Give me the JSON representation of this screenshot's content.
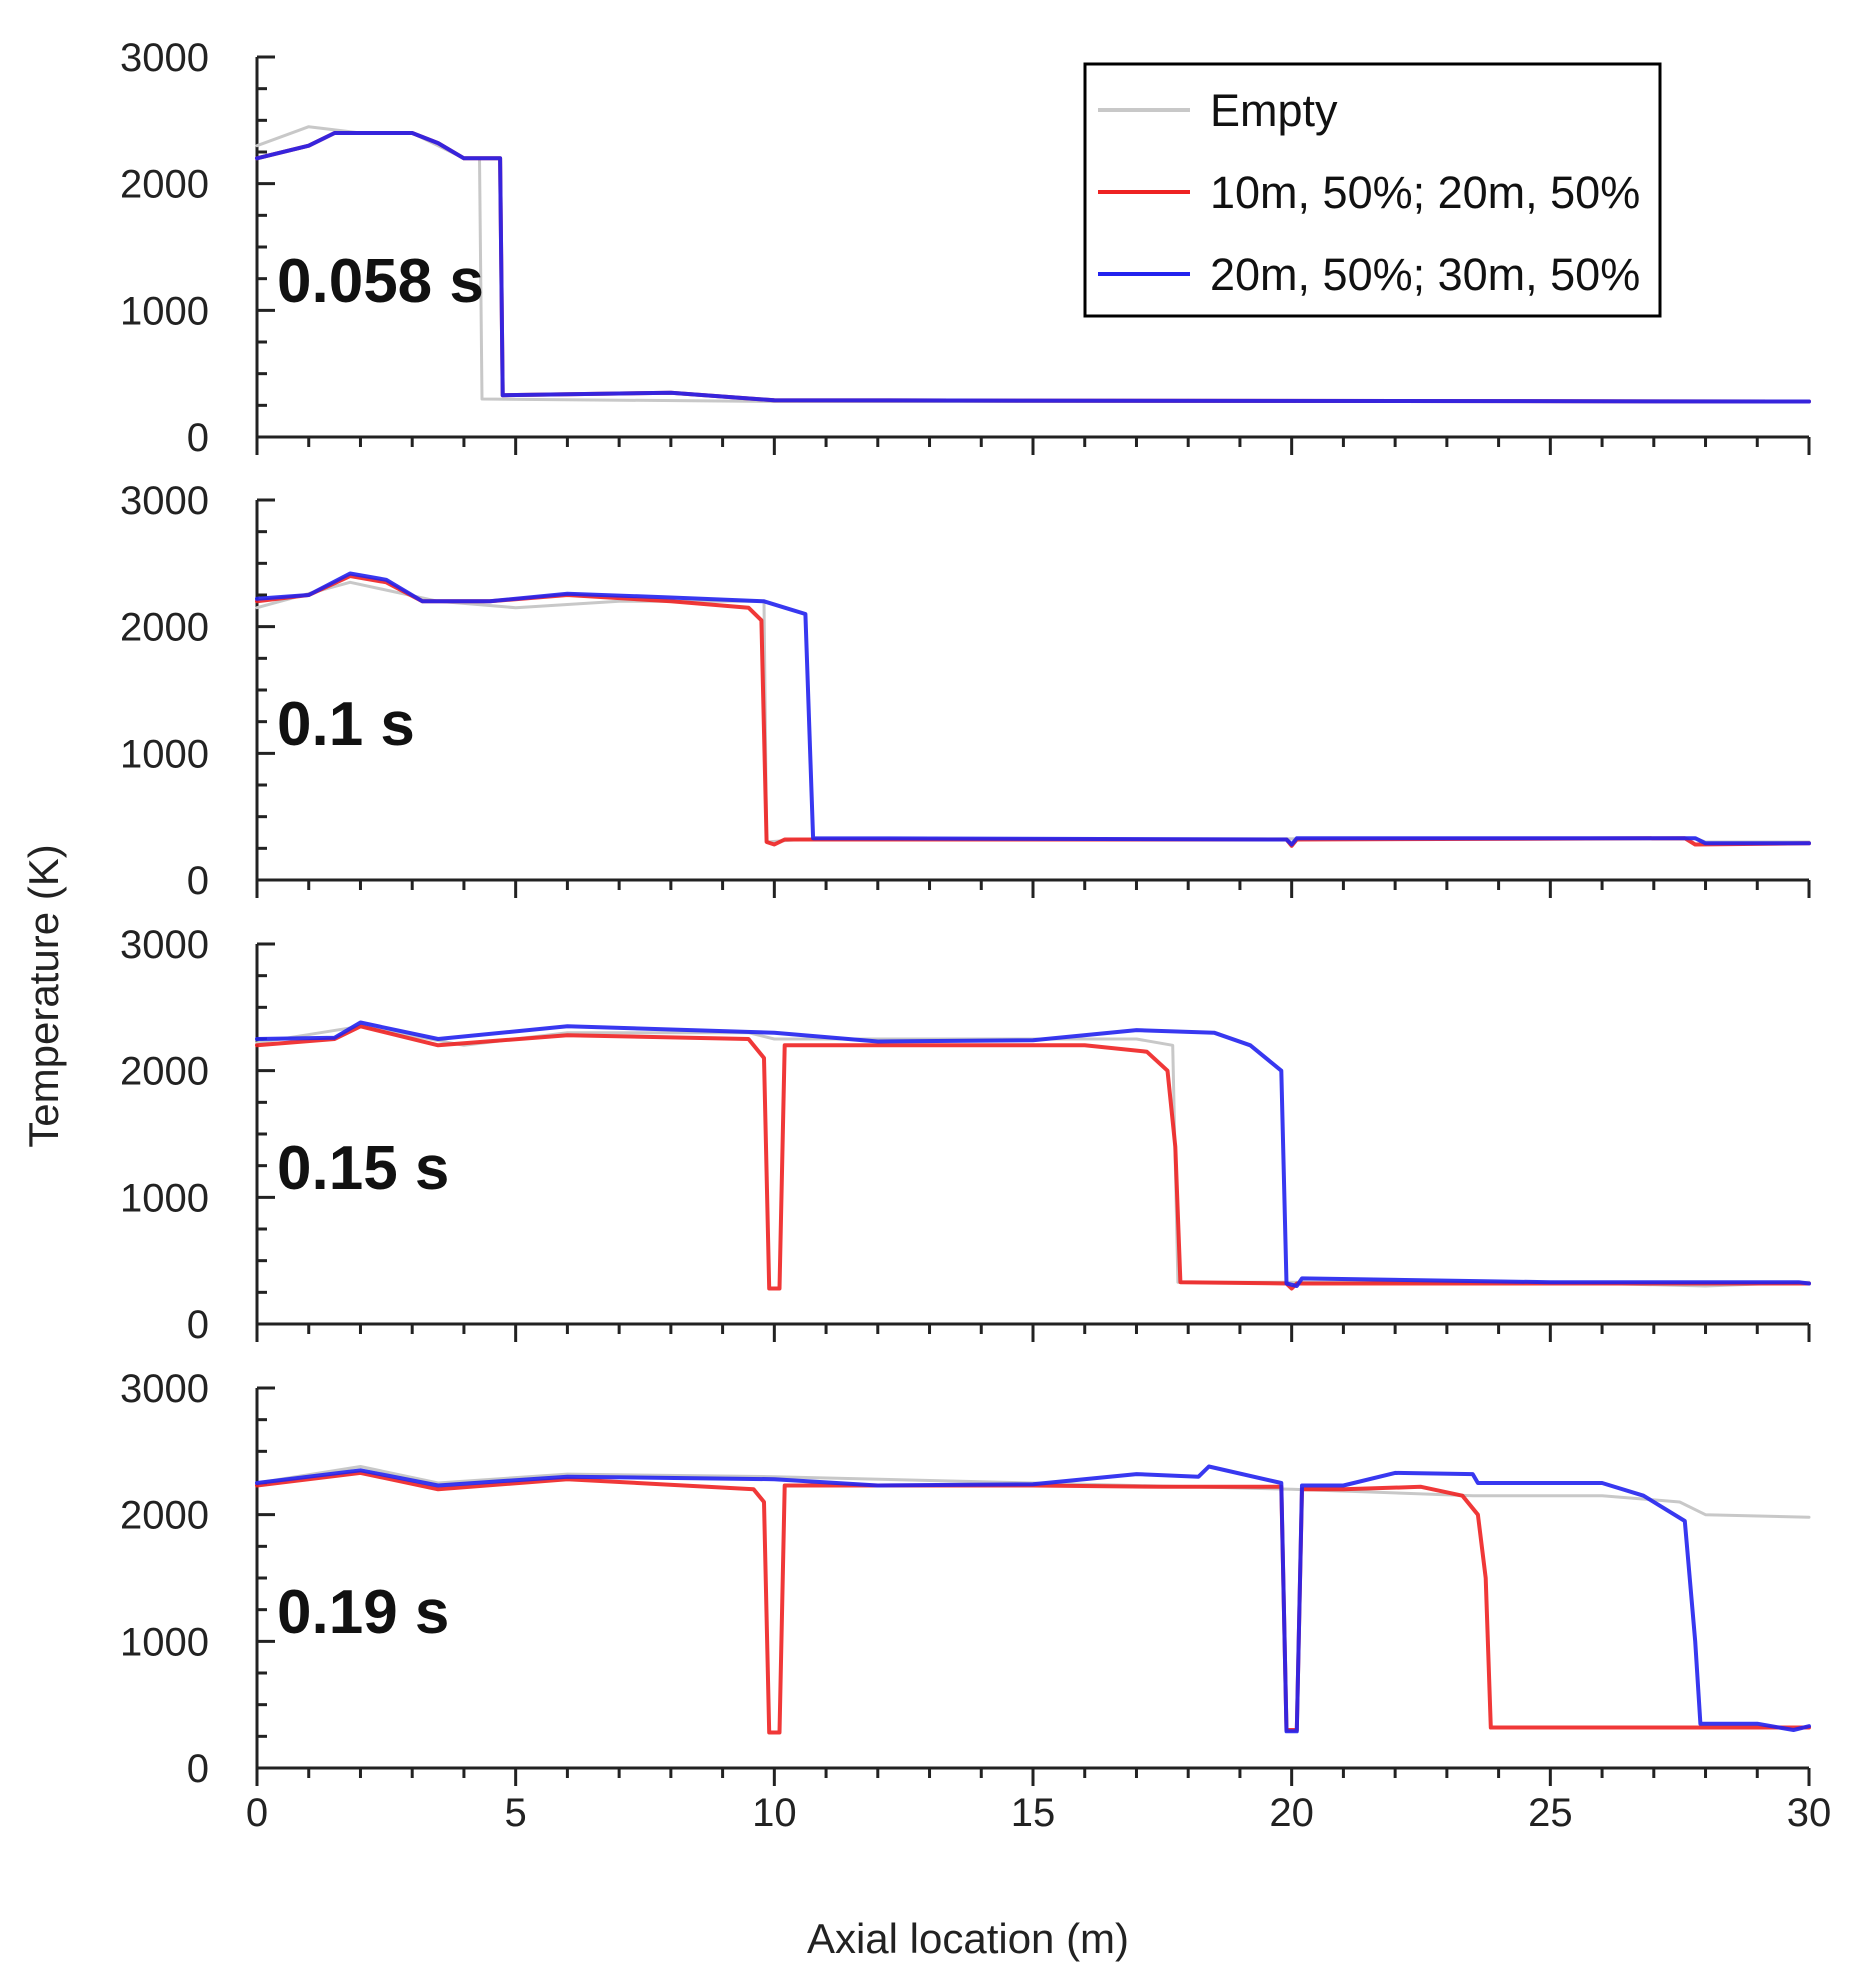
{
  "chart_data": {
    "type": "line",
    "xlabel": "Axial location (m)",
    "ylabel": "Temperature (K)",
    "xlim": [
      0,
      30
    ],
    "ylim": [
      0,
      3000
    ],
    "x_ticks": [
      0,
      5,
      10,
      15,
      20,
      25,
      30
    ],
    "y_ticks": [
      0,
      1000,
      2000,
      3000
    ],
    "grid": false,
    "legend_position": "top-right",
    "legend": [
      {
        "name": "Empty",
        "color": "#c8c8c8"
      },
      {
        "name": "10m, 50%; 20m, 50%",
        "color": "#ee2222"
      },
      {
        "name": "20m, 50%; 30m, 50%",
        "color": "#2222ee"
      }
    ],
    "panels": [
      {
        "label": "0.058 s",
        "series": [
          {
            "name": "Empty",
            "points": [
              [
                0,
                2300
              ],
              [
                1,
                2450
              ],
              [
                2,
                2400
              ],
              [
                3,
                2400
              ],
              [
                4,
                2200
              ],
              [
                4.3,
                2200
              ],
              [
                4.35,
                300
              ],
              [
                10,
                280
              ],
              [
                30,
                280
              ]
            ]
          },
          {
            "name": "10m, 50%; 20m, 50%",
            "points": [
              [
                0,
                2200
              ],
              [
                1,
                2300
              ],
              [
                1.5,
                2400
              ],
              [
                3,
                2400
              ],
              [
                3.5,
                2320
              ],
              [
                4,
                2200
              ],
              [
                4.7,
                2200
              ],
              [
                4.75,
                330
              ],
              [
                8,
                350
              ],
              [
                10,
                290
              ],
              [
                30,
                280
              ]
            ]
          },
          {
            "name": "20m, 50%; 30m, 50%",
            "points": [
              [
                0,
                2200
              ],
              [
                1,
                2300
              ],
              [
                1.5,
                2400
              ],
              [
                3,
                2400
              ],
              [
                3.5,
                2320
              ],
              [
                4,
                2200
              ],
              [
                4.7,
                2200
              ],
              [
                4.75,
                330
              ],
              [
                8,
                350
              ],
              [
                10,
                290
              ],
              [
                30,
                280
              ]
            ]
          }
        ]
      },
      {
        "label": "0.1 s",
        "series": [
          {
            "name": "Empty",
            "points": [
              [
                0,
                2150
              ],
              [
                1.8,
                2350
              ],
              [
                3.5,
                2200
              ],
              [
                5,
                2150
              ],
              [
                7,
                2200
              ],
              [
                9.5,
                2200
              ],
              [
                9.8,
                2200
              ],
              [
                9.85,
                300
              ],
              [
                10.5,
                320
              ],
              [
                27.8,
                330
              ],
              [
                28,
                300
              ],
              [
                30,
                300
              ]
            ]
          },
          {
            "name": "10m, 50%; 20m, 50%",
            "points": [
              [
                0,
                2200
              ],
              [
                1,
                2250
              ],
              [
                1.8,
                2400
              ],
              [
                2.5,
                2350
              ],
              [
                3.2,
                2200
              ],
              [
                4.5,
                2200
              ],
              [
                6,
                2250
              ],
              [
                8,
                2200
              ],
              [
                9.5,
                2150
              ],
              [
                9.75,
                2050
              ],
              [
                9.85,
                300
              ],
              [
                10,
                280
              ],
              [
                10.2,
                320
              ],
              [
                19.9,
                320
              ],
              [
                20,
                270
              ],
              [
                20.1,
                320
              ],
              [
                27.6,
                330
              ],
              [
                27.8,
                280
              ],
              [
                30,
                290
              ]
            ]
          },
          {
            "name": "20m, 50%; 30m, 50%",
            "points": [
              [
                0,
                2220
              ],
              [
                1,
                2250
              ],
              [
                1.8,
                2420
              ],
              [
                2.5,
                2370
              ],
              [
                3.2,
                2200
              ],
              [
                4.5,
                2200
              ],
              [
                6,
                2260
              ],
              [
                8,
                2230
              ],
              [
                9.8,
                2200
              ],
              [
                10.2,
                2150
              ],
              [
                10.6,
                2100
              ],
              [
                10.75,
                330
              ],
              [
                19.9,
                320
              ],
              [
                20,
                280
              ],
              [
                20.1,
                330
              ],
              [
                25,
                330
              ],
              [
                27.8,
                330
              ],
              [
                28,
                290
              ],
              [
                30,
                290
              ]
            ]
          }
        ]
      },
      {
        "label": "0.15 s",
        "series": [
          {
            "name": "Empty",
            "points": [
              [
                0,
                2220
              ],
              [
                2,
                2350
              ],
              [
                4,
                2200
              ],
              [
                6,
                2300
              ],
              [
                9.5,
                2300
              ],
              [
                10,
                2250
              ],
              [
                15,
                2250
              ],
              [
                17,
                2250
              ],
              [
                17.7,
                2200
              ],
              [
                17.8,
                330
              ],
              [
                25,
                330
              ],
              [
                28,
                300
              ],
              [
                30,
                330
              ]
            ]
          },
          {
            "name": "10m, 50%; 20m, 50%",
            "points": [
              [
                0,
                2200
              ],
              [
                1.5,
                2250
              ],
              [
                2,
                2350
              ],
              [
                3.5,
                2200
              ],
              [
                6,
                2280
              ],
              [
                9.5,
                2250
              ],
              [
                9.8,
                2100
              ],
              [
                9.9,
                280
              ],
              [
                10.1,
                280
              ],
              [
                10.2,
                2200
              ],
              [
                16,
                2200
              ],
              [
                17.2,
                2150
              ],
              [
                17.6,
                2000
              ],
              [
                17.75,
                1400
              ],
              [
                17.85,
                330
              ],
              [
                19.9,
                320
              ],
              [
                20,
                280
              ],
              [
                20.1,
                320
              ],
              [
                30,
                320
              ]
            ]
          },
          {
            "name": "20m, 50%; 30m, 50%",
            "points": [
              [
                0,
                2250
              ],
              [
                1.5,
                2260
              ],
              [
                2,
                2380
              ],
              [
                3.5,
                2250
              ],
              [
                6,
                2350
              ],
              [
                10,
                2300
              ],
              [
                12,
                2230
              ],
              [
                15,
                2240
              ],
              [
                17,
                2320
              ],
              [
                18.5,
                2300
              ],
              [
                19.2,
                2200
              ],
              [
                19.8,
                2000
              ],
              [
                19.9,
                320
              ],
              [
                20.1,
                300
              ],
              [
                20.2,
                360
              ],
              [
                25,
                330
              ],
              [
                29.8,
                330
              ],
              [
                30,
                320
              ]
            ]
          }
        ]
      },
      {
        "label": "0.19 s",
        "series": [
          {
            "name": "Empty",
            "points": [
              [
                0,
                2250
              ],
              [
                2,
                2380
              ],
              [
                3.5,
                2250
              ],
              [
                6,
                2320
              ],
              [
                10,
                2300
              ],
              [
                15,
                2250
              ],
              [
                20,
                2200
              ],
              [
                23.5,
                2150
              ],
              [
                26,
                2150
              ],
              [
                27.5,
                2100
              ],
              [
                28,
                2000
              ],
              [
                30,
                1980
              ]
            ]
          },
          {
            "name": "10m, 50%; 20m, 50%",
            "points": [
              [
                0,
                2230
              ],
              [
                2,
                2330
              ],
              [
                3.5,
                2200
              ],
              [
                6,
                2280
              ],
              [
                9.6,
                2200
              ],
              [
                9.8,
                2100
              ],
              [
                9.9,
                280
              ],
              [
                10.1,
                280
              ],
              [
                10.2,
                2230
              ],
              [
                15,
                2230
              ],
              [
                17.5,
                2220
              ],
              [
                19.8,
                2220
              ],
              [
                19.9,
                300
              ],
              [
                20.1,
                300
              ],
              [
                20.2,
                2200
              ],
              [
                21,
                2200
              ],
              [
                22.5,
                2220
              ],
              [
                23.3,
                2150
              ],
              [
                23.6,
                2000
              ],
              [
                23.75,
                1500
              ],
              [
                23.85,
                320
              ],
              [
                30,
                320
              ]
            ]
          },
          {
            "name": "20m, 50%; 30m, 50%",
            "points": [
              [
                0,
                2250
              ],
              [
                2,
                2350
              ],
              [
                3.5,
                2230
              ],
              [
                6,
                2300
              ],
              [
                10,
                2280
              ],
              [
                12,
                2230
              ],
              [
                15,
                2240
              ],
              [
                17,
                2320
              ],
              [
                18.2,
                2300
              ],
              [
                18.4,
                2380
              ],
              [
                19.8,
                2250
              ],
              [
                19.9,
                290
              ],
              [
                20.1,
                290
              ],
              [
                20.2,
                2230
              ],
              [
                21,
                2230
              ],
              [
                22,
                2330
              ],
              [
                23.5,
                2320
              ],
              [
                23.6,
                2250
              ],
              [
                25,
                2250
              ],
              [
                26,
                2250
              ],
              [
                26.8,
                2150
              ],
              [
                27.6,
                1950
              ],
              [
                27.8,
                1000
              ],
              [
                27.9,
                350
              ],
              [
                29,
                350
              ],
              [
                29.7,
                300
              ],
              [
                30,
                330
              ]
            ]
          }
        ]
      }
    ]
  }
}
